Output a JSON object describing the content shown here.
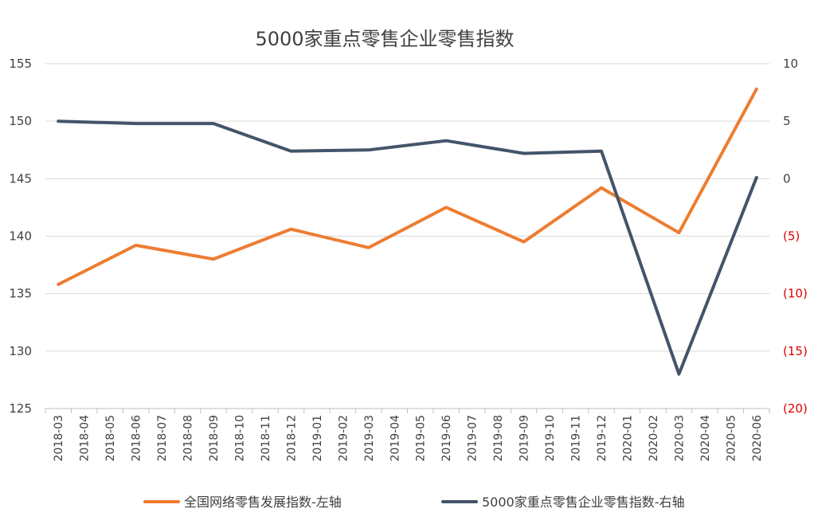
{
  "chart_data": {
    "type": "line",
    "title": "5000家重点零售企业零售指数",
    "categories": [
      "2018-03",
      "2018-04",
      "2018-05",
      "2018-06",
      "2018-07",
      "2018-08",
      "2018-09",
      "2018-10",
      "2018-11",
      "2018-12",
      "2019-01",
      "2019-02",
      "2019-03",
      "2019-04",
      "2019-05",
      "2019-06",
      "2019-07",
      "2019-08",
      "2019-09",
      "2019-10",
      "2019-11",
      "2019-12",
      "2020-01",
      "2020-02",
      "2020-03",
      "2020-04",
      "2020-05",
      "2020-06"
    ],
    "y_left": {
      "ylim": [
        125,
        155
      ],
      "ticks": [
        155,
        150,
        145,
        140,
        135,
        130,
        125
      ],
      "tick_labels": [
        "155",
        "150",
        "145",
        "140",
        "135",
        "130",
        "125"
      ]
    },
    "y_right": {
      "ylim": [
        -20,
        10
      ],
      "ticks": [
        10,
        5,
        0,
        -5,
        -10,
        -15,
        -20
      ],
      "tick_labels": [
        "10",
        "5",
        "0",
        "(5)",
        "(10)",
        "(15)",
        "(20)"
      ]
    },
    "grid": true,
    "legend_position": "bottom",
    "series": [
      {
        "name": "全国网络零售发展指数-左轴",
        "axis": "left",
        "color": "#ed7d31",
        "points": [
          {
            "x": "2018-03",
            "y": 135.8
          },
          {
            "x": "2018-06",
            "y": 139.2
          },
          {
            "x": "2018-09",
            "y": 138.0
          },
          {
            "x": "2018-12",
            "y": 140.6
          },
          {
            "x": "2019-03",
            "y": 139.0
          },
          {
            "x": "2019-06",
            "y": 142.5
          },
          {
            "x": "2019-09",
            "y": 139.5
          },
          {
            "x": "2019-12",
            "y": 144.2
          },
          {
            "x": "2020-03",
            "y": 140.3
          },
          {
            "x": "2020-06",
            "y": 152.8
          }
        ]
      },
      {
        "name": "5000家重点零售企业零售指数-右轴",
        "axis": "right",
        "color": "#44546a",
        "points": [
          {
            "x": "2018-03",
            "y": 5.0
          },
          {
            "x": "2018-06",
            "y": 4.8
          },
          {
            "x": "2018-09",
            "y": 4.8
          },
          {
            "x": "2018-12",
            "y": 2.4
          },
          {
            "x": "2019-03",
            "y": 2.5
          },
          {
            "x": "2019-06",
            "y": 3.3
          },
          {
            "x": "2019-09",
            "y": 2.2
          },
          {
            "x": "2019-12",
            "y": 2.4
          },
          {
            "x": "2020-03",
            "y": -17.0
          },
          {
            "x": "2020-06",
            "y": 0.1
          }
        ]
      }
    ]
  }
}
